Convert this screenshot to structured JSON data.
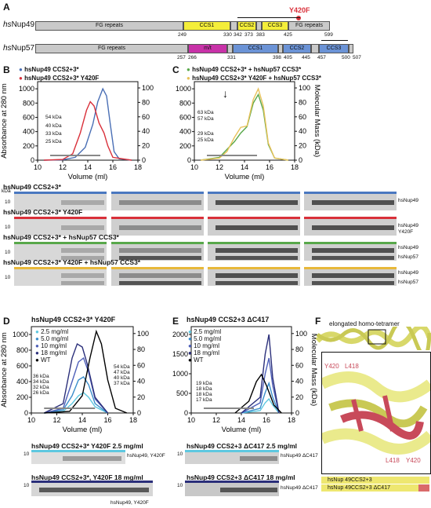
{
  "panels": {
    "A": "A",
    "B": "B",
    "C": "C",
    "D": "D",
    "E": "E",
    "F": "F"
  },
  "A": {
    "nup49_name_prefix": "hs",
    "nup49_name": "Nup49",
    "nup57_name_prefix": "hs",
    "nup57_name": "Nup57",
    "mutation": "Y420F",
    "nup49_domains": [
      "FG repeats",
      "CCS1",
      "CCS2",
      "CCS3",
      "FG repeats"
    ],
    "nup49_positions": [
      "249",
      "330",
      "342",
      "373",
      "383",
      "425",
      "599"
    ],
    "nup57_domains": [
      "FG repeats",
      "m/t",
      "CCS1",
      "CCS2",
      "CCS3"
    ],
    "nup57_positions": [
      "257",
      "266",
      "331",
      "398",
      "405",
      "445",
      "457",
      "500",
      "507"
    ]
  },
  "B": {
    "legend": [
      "hsNup49 CCS2+3*",
      "hsNup49 CCS2+3* Y420F"
    ],
    "mass_labels": [
      "54 kDa",
      "40 kDa",
      "33 kDa",
      "25 kDa"
    ],
    "ylabel": "Absorbance at 280 nm",
    "xlabel": "Volume (ml)"
  },
  "C": {
    "legend": [
      "hsNup49 CCS2+3* + hsNup57 CCS3*",
      "hsNup49 CCS2+3* Y420F + hsNup57 CCS3*"
    ],
    "mass_labels": [
      "63 kDa",
      "57 kDa",
      "29 kDa",
      "25 kDa"
    ],
    "xlabel": "Volume (ml)",
    "y2label": "Molecular Mass (kDa)"
  },
  "gels": {
    "kda": "kDa",
    "rows": [
      {
        "title": "hsNup49 CCS2+3*",
        "label": "hsNup49",
        "label2": "",
        "color": "#4a78c0"
      },
      {
        "title": "hsNup49 CCS2+3* Y420F",
        "label": "hsNup49",
        "label2": "Y420F",
        "color": "#d9303a"
      },
      {
        "title": "hsNup49 CCS2+3* + hsNup57 CCS3*",
        "label": "hsNup49",
        "label2": "hsNup57",
        "color": "#58a84a"
      },
      {
        "title": "hsNup49 CCS2+3* Y420F + hsNup57 CCS3*",
        "label": "hsNup49",
        "label2": "hsNup57",
        "color": "#e8b83a"
      }
    ],
    "marker": "10"
  },
  "D": {
    "title": "hsNup49 CCS2+3* Y420F",
    "legend": [
      "2.5 mg/ml",
      "5.0 mg/ml",
      "10 mg/ml",
      "18 mg/ml",
      "WT"
    ],
    "mass_left": [
      "36 kDa",
      "34 kDa",
      "32 kDa",
      "26 kDa"
    ],
    "mass_right": [
      "54 kDa",
      "47 kDa",
      "40 kDa",
      "37 kDa"
    ],
    "ylabel": "Absorbance at 280 nm",
    "xlabel": "Volume (ml)",
    "gel1_title": "hsNup49 CCS2+3* Y420F 2.5 mg/ml",
    "gel1_label": "hsNup49, Y420F",
    "gel2_title": "hsNup49 CCS2+3*, Y420F 18 mg/ml",
    "gel2_label": "hsNup49, Y420F"
  },
  "E": {
    "title": "hsNup49 CCS2+3 ΔC417",
    "legend": [
      "2.5 mg/ml",
      "5.0 mg/ml",
      "10 mg/ml",
      "18 mg/ml",
      "WT"
    ],
    "mass_labels": [
      "19 kDa",
      "18 kDa",
      "18 kDa",
      "17 kDa"
    ],
    "xlabel": "Volume (ml)",
    "y2label": "Molecular Mass (kDa)",
    "gel1_title": "hsNup49 CCS2+3 ΔC417 2.5 mg/ml",
    "gel1_label": "hsNup49 ΔC417",
    "gel2_title": "hsNup49 CCS2+3 ΔC417 18 mg/ml",
    "gel2_label": "hsNup49 ΔC417"
  },
  "F": {
    "title": "elongated homo-tetramer",
    "residues": [
      "Y420",
      "L418",
      "L418",
      "Y420"
    ],
    "legend": [
      "hsNup 49CCS2+3",
      "hsNup 49CCS2+3 ΔC417"
    ]
  },
  "chart_data": [
    {
      "type": "line",
      "panel": "B",
      "x_ticks": [
        "10",
        "12",
        "14",
        "16",
        "18"
      ],
      "y_ticks": [
        "0",
        "200",
        "400",
        "600",
        "800",
        "1000"
      ],
      "y2_ticks": [
        "0",
        "20",
        "40",
        "60",
        "80",
        "100"
      ],
      "xlim": [
        10,
        18
      ],
      "ylim": [
        0,
        1100
      ],
      "series": [
        {
          "name": "hsNup49 CCS2+3*",
          "color": "#4a6fb5",
          "x": [
            10.5,
            12,
            13,
            13.8,
            14.4,
            14.8,
            15.2,
            15.5,
            15.8,
            16.1,
            16.5,
            17.5
          ],
          "y": [
            0,
            5,
            40,
            180,
            500,
            820,
            1000,
            900,
            500,
            120,
            20,
            0
          ]
        },
        {
          "name": "hsNup49 CCS2+3* Y420F",
          "color": "#d9303a",
          "x": [
            10.5,
            12,
            12.8,
            13.4,
            13.9,
            14.2,
            14.5,
            14.9,
            15.3,
            15.6,
            16,
            17.5
          ],
          "y": [
            0,
            10,
            90,
            380,
            700,
            820,
            760,
            520,
            380,
            200,
            40,
            0
          ]
        }
      ]
    },
    {
      "type": "line",
      "panel": "C",
      "x_ticks": [
        "10",
        "12",
        "14",
        "16",
        "18"
      ],
      "y_ticks": [
        "0",
        "200",
        "400",
        "600",
        "800",
        "1000"
      ],
      "y2_ticks": [
        "0",
        "20",
        "40",
        "60",
        "80",
        "100"
      ],
      "xlim": [
        10,
        18
      ],
      "ylim": [
        0,
        1100
      ],
      "series": [
        {
          "name": "hsNup49 CCS2+3* + hsNup57 CCS3*",
          "color": "#58a84a",
          "x": [
            10.5,
            12,
            12.6,
            13.2,
            13.7,
            14.2,
            14.7,
            15.1,
            15.5,
            15.9,
            16.4,
            17.5
          ],
          "y": [
            0,
            40,
            150,
            260,
            380,
            470,
            800,
            920,
            700,
            220,
            30,
            0
          ]
        },
        {
          "name": "hsNup49 CCS2+3* Y420F + hsNup57 CCS3*",
          "color": "#e8c25a",
          "x": [
            10.5,
            12,
            12.6,
            13.2,
            13.7,
            14.2,
            14.7,
            15.1,
            15.5,
            15.9,
            16.4,
            17.5
          ],
          "y": [
            0,
            30,
            120,
            320,
            460,
            480,
            850,
            1000,
            760,
            240,
            30,
            0
          ]
        }
      ]
    },
    {
      "type": "line",
      "panel": "D",
      "x_ticks": [
        "10",
        "12",
        "14",
        "16",
        "18"
      ],
      "y_ticks": [
        "0",
        "200",
        "400",
        "600",
        "800",
        "1000"
      ],
      "y2_ticks": [
        "0",
        "20",
        "40",
        "60",
        "80",
        "100"
      ],
      "xlim": [
        10,
        18
      ],
      "ylim": [
        0,
        1100
      ],
      "series": [
        {
          "name": "2.5 mg/ml",
          "color": "#5ec8e0",
          "x": [
            11,
            12.5,
            13.2,
            13.7,
            14.1,
            14.5,
            15,
            16
          ],
          "y": [
            0,
            20,
            120,
            220,
            260,
            200,
            80,
            0
          ]
        },
        {
          "name": "5.0 mg/ml",
          "color": "#3b8ecb",
          "x": [
            11,
            12.5,
            13.2,
            13.7,
            14.1,
            14.5,
            15,
            16
          ],
          "y": [
            0,
            40,
            220,
            420,
            460,
            360,
            120,
            0
          ]
        },
        {
          "name": "10 mg/ml",
          "color": "#4e5fb8",
          "x": [
            11,
            12.5,
            13.2,
            13.7,
            14.1,
            14.5,
            15,
            16
          ],
          "y": [
            0,
            60,
            400,
            650,
            700,
            520,
            180,
            0
          ]
        },
        {
          "name": "18 mg/ml",
          "color": "#2b2f7a",
          "x": [
            11,
            12.5,
            13.2,
            13.6,
            14,
            14.4,
            15,
            16
          ],
          "y": [
            0,
            120,
            700,
            880,
            840,
            620,
            200,
            0
          ]
        },
        {
          "name": "WT",
          "color": "#000000",
          "x": [
            11,
            13,
            14,
            14.6,
            15.1,
            15.5,
            16,
            16.6,
            17.5
          ],
          "y": [
            0,
            20,
            220,
            700,
            1040,
            880,
            420,
            60,
            0
          ]
        }
      ]
    },
    {
      "type": "line",
      "panel": "E",
      "x_ticks": [
        "10",
        "12",
        "14",
        "16",
        "18"
      ],
      "y_ticks": [
        "0",
        "500",
        "1000",
        "1500",
        "2000"
      ],
      "y2_ticks": [
        "0",
        "20",
        "40",
        "60",
        "80",
        "100"
      ],
      "xlim": [
        10,
        18
      ],
      "ylim": [
        0,
        2200
      ],
      "series": [
        {
          "name": "2.5 mg/ml",
          "color": "#5ec8e0",
          "x": [
            14,
            15.5,
            15.9,
            16.2,
            16.5,
            17
          ],
          "y": [
            0,
            60,
            260,
            360,
            200,
            0
          ]
        },
        {
          "name": "5.0 mg/ml",
          "color": "#3b8ecb",
          "x": [
            14,
            15.5,
            15.9,
            16.2,
            16.5,
            17
          ],
          "y": [
            0,
            120,
            520,
            760,
            400,
            0
          ]
        },
        {
          "name": "10 mg/ml",
          "color": "#4e5fb8",
          "x": [
            14,
            15.5,
            15.9,
            16.2,
            16.5,
            17
          ],
          "y": [
            0,
            260,
            1000,
            1400,
            700,
            0
          ]
        },
        {
          "name": "18 mg/ml",
          "color": "#2b2f7a",
          "x": [
            14,
            15.5,
            15.9,
            16.2,
            16.5,
            17
          ],
          "y": [
            0,
            400,
            1500,
            2000,
            900,
            0
          ]
        },
        {
          "name": "WT",
          "color": "#000000",
          "x": [
            13.5,
            14.6,
            15.2,
            15.6,
            16,
            16.6,
            17.2
          ],
          "y": [
            0,
            300,
            800,
            980,
            700,
            200,
            0
          ]
        }
      ]
    }
  ]
}
